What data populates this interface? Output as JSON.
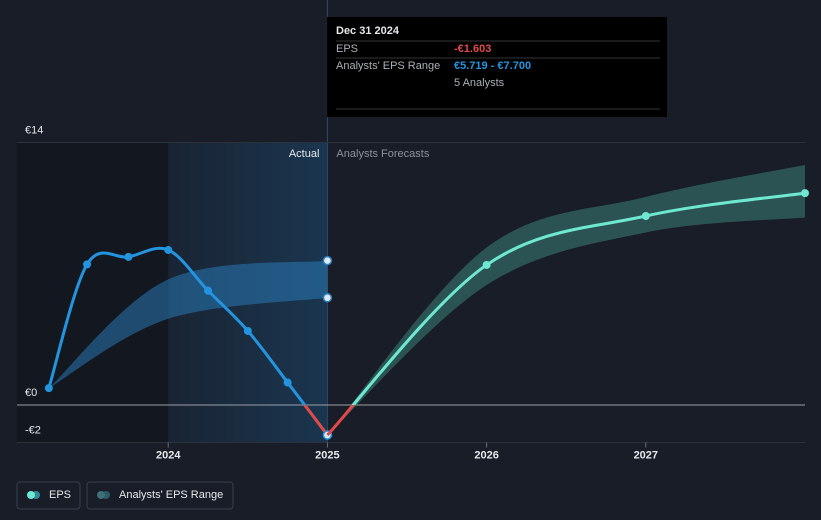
{
  "chart_data": {
    "type": "line",
    "xlim": [
      2023.05,
      2028
    ],
    "ylim": [
      -2,
      14
    ],
    "xticks": [
      2024,
      2025,
      2026,
      2027
    ],
    "yticks": [
      {
        "value": 14,
        "label": "€14"
      },
      {
        "value": 0,
        "label": "€0"
      },
      {
        "value": -2,
        "label": "-€2"
      }
    ],
    "region_labels": {
      "actual": "Actual",
      "forecast": "Analysts Forecasts"
    },
    "series": [
      {
        "name": "EPS",
        "color": "#2394df",
        "negative_color": "#e04a4a",
        "x": [
          2023.25,
          2023.49,
          2023.75,
          2024.0,
          2024.25,
          2024.5,
          2024.75,
          2025.0
        ],
        "values": [
          0.9,
          7.5,
          7.9,
          8.27,
          6.1,
          3.95,
          1.2,
          -1.603
        ]
      },
      {
        "color": "#6fe8d1",
        "negative_color": "#e04a4a",
        "x": [
          2025.0,
          2026.0,
          2027.0,
          2028.0
        ],
        "values": [
          -1.603,
          7.47,
          10.08,
          11.3
        ]
      }
    ],
    "ranges": [
      {
        "name": "Analysts' EPS Range",
        "color": "#2a7fc0",
        "x": [
          2023.25,
          2024.0,
          2025.0
        ],
        "low": [
          0.9,
          4.6,
          5.719
        ],
        "high": [
          0.9,
          6.7,
          7.7
        ]
      },
      {
        "color": "#3f8a80",
        "x": [
          2025.0,
          2026.0,
          2027.0,
          2028.0
        ],
        "low": [
          -1.603,
          6.4,
          9.2,
          10.0
        ],
        "high": [
          -1.603,
          8.4,
          11.1,
          12.8
        ]
      }
    ],
    "tooltip": {
      "date": "Dec 31 2024",
      "eps_label": "EPS",
      "eps_value": "-€1.603",
      "range_label": "Analysts' EPS Range",
      "range_value": "€5.719 - €7.700",
      "analysts": "5 Analysts"
    }
  }
}
